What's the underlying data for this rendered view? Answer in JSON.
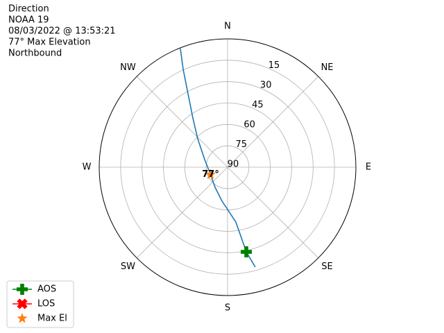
{
  "chart_data": {
    "type": "polar",
    "title_lines": [
      "Direction",
      "NOAA 19",
      "08/03/2022 @ 13:53:21",
      "77° Max Elevation",
      "Northbound"
    ],
    "direction_labels": [
      "N",
      "NE",
      "E",
      "SE",
      "S",
      "SW",
      "W",
      "NW"
    ],
    "rlim": [
      90,
      0
    ],
    "rticks": [
      90,
      75,
      60,
      45,
      30,
      15
    ],
    "grid": true,
    "track": {
      "color": "#1f77b4",
      "azimuth": [
        164.5,
        167.5,
        171.4,
        178.2,
        189.3,
        211.8,
        246.3,
        288.4,
        304.4,
        313.6,
        324.8,
        331,
        335.6,
        338.3
      ],
      "elevation": [
        17.3,
        29.2,
        51.1,
        58.9,
        65.9,
        73.4,
        77,
        73.1,
        67.6,
        61.1,
        47.8,
        33.8,
        14.7,
        0.5
      ]
    },
    "markers": [
      {
        "name": "AOS",
        "shape": "plus",
        "color": "#008000",
        "azimuth": [
          167.5
        ],
        "elevation": [
          29.2
        ]
      },
      {
        "name": "LOS",
        "shape": "x",
        "color": "#ff0000",
        "azimuth": [],
        "elevation": []
      },
      {
        "name": "Max El",
        "shape": "star",
        "color": "#ff7f0e",
        "azimuth": [
          246.3
        ],
        "elevation": [
          77
        ]
      }
    ],
    "annotation": {
      "text": "77°",
      "azimuth": 246.3,
      "elevation": 77
    },
    "legend": "lower left"
  }
}
